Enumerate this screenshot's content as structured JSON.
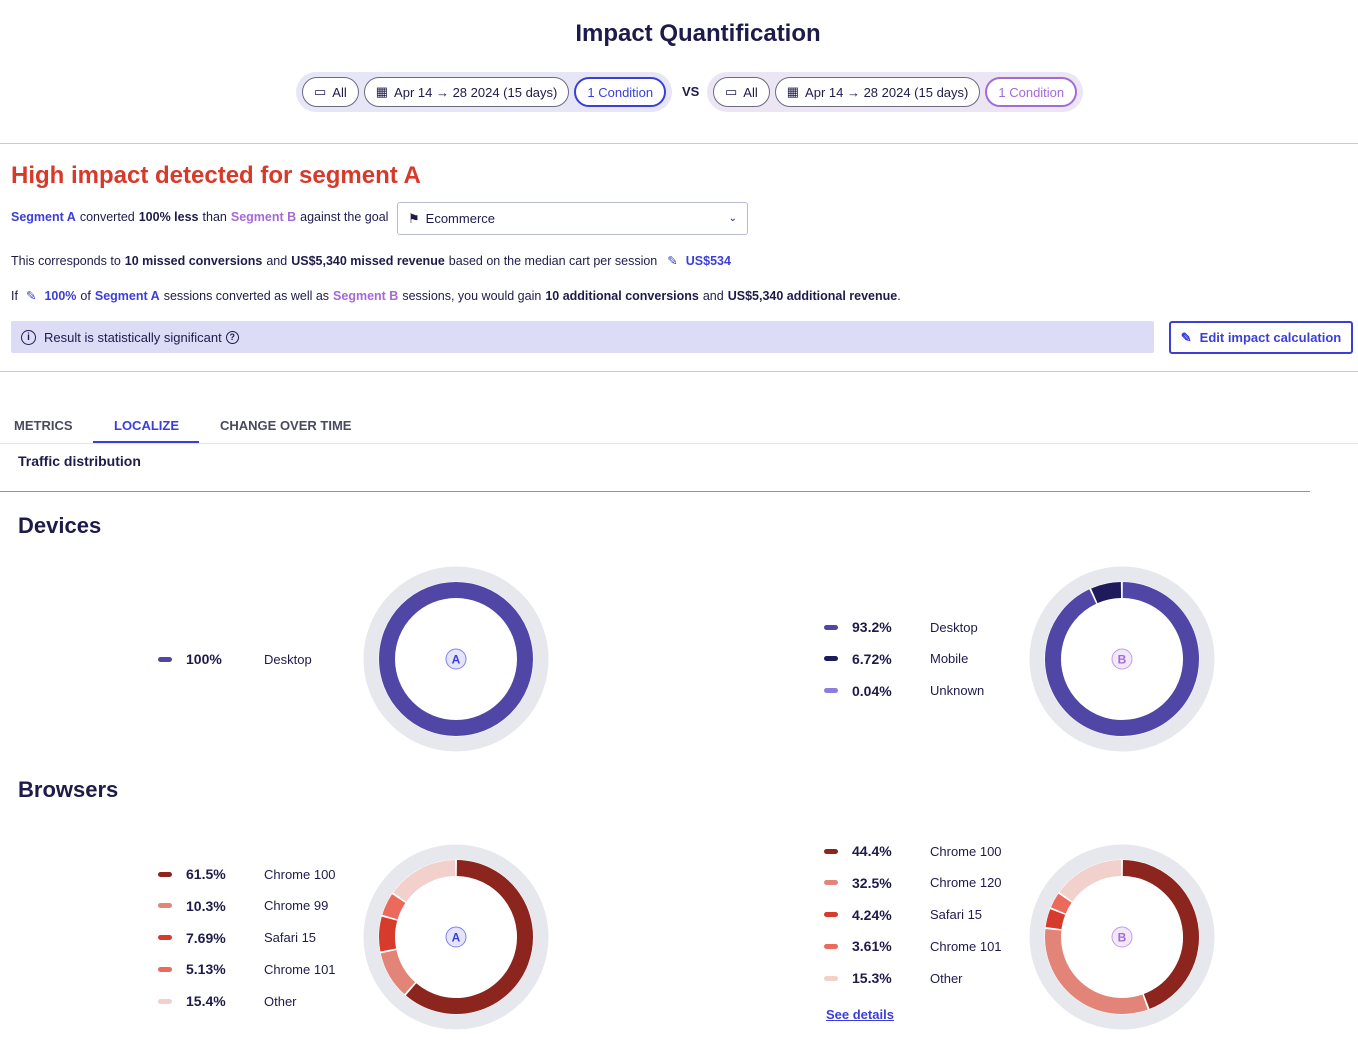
{
  "title": "Impact Quantification",
  "comparison": {
    "a": {
      "device": "All",
      "date": "Apr 14 → 28 2024 (15 days)",
      "condition": "1 Condition"
    },
    "vs": "VS",
    "b": {
      "device": "All",
      "date": "Apr 14 → 28 2024 (15 days)",
      "condition": "1 Condition"
    }
  },
  "impact": {
    "heading": "High impact detected for segment A",
    "line1": {
      "seg_a": "Segment A",
      "t1": "converted",
      "pct": "100% less",
      "t2": "than",
      "seg_b": "Segment B",
      "t3": "against the goal"
    },
    "goal_select": "Ecommerce",
    "line2": {
      "t1": "This corresponds to",
      "conv": "10 missed conversions",
      "t2": "and",
      "rev": "US$5,340 missed revenue",
      "t3": "based on the median cart per session",
      "cart": "US$534"
    },
    "line3": {
      "t1": "If",
      "pct": "100%",
      "t2": "of",
      "seg_a": "Segment A",
      "t3": "sessions converted as well as",
      "seg_b": "Segment B",
      "t4": "sessions, you would gain",
      "conv": "10 additional conversions",
      "t5": "and",
      "rev": "US$5,340 additional revenue",
      "t6": "."
    },
    "banner": "Result is statistically significant",
    "edit_button": "Edit impact calculation"
  },
  "tabs": [
    {
      "label": "METRICS"
    },
    {
      "label": "LOCALIZE",
      "active": true
    },
    {
      "label": "CHANGE OVER TIME"
    }
  ],
  "subheading": "Traffic distribution",
  "see_details": "See details",
  "colors": {
    "segment_a": "#3b3fd8",
    "segment_b": "#a46ad6",
    "alert": "#d73a2a"
  },
  "chart_data": [
    {
      "type": "pie",
      "title": "Devices",
      "segment": "A",
      "series": [
        {
          "label": "Desktop",
          "pct": "100%",
          "value": 100,
          "color": "#4f46a5"
        }
      ]
    },
    {
      "type": "pie",
      "title": "Devices",
      "segment": "B",
      "series": [
        {
          "label": "Desktop",
          "pct": "93.2%",
          "value": 93.2,
          "color": "#4f46a5"
        },
        {
          "label": "Mobile",
          "pct": "6.72%",
          "value": 6.72,
          "color": "#1f1a5c"
        },
        {
          "label": "Unknown",
          "pct": "0.04%",
          "value": 0.04,
          "color": "#8a7fe0"
        }
      ]
    },
    {
      "type": "pie",
      "title": "Browsers",
      "segment": "A",
      "series": [
        {
          "label": "Chrome 100",
          "pct": "61.5%",
          "value": 61.5,
          "color": "#8b251e"
        },
        {
          "label": "Chrome 99",
          "pct": "10.3%",
          "value": 10.3,
          "color": "#e38479"
        },
        {
          "label": "Safari 15",
          "pct": "7.69%",
          "value": 7.69,
          "color": "#d63b2b"
        },
        {
          "label": "Chrome 101",
          "pct": "5.13%",
          "value": 5.13,
          "color": "#ec6a5c"
        },
        {
          "label": "Other",
          "pct": "15.4%",
          "value": 15.4,
          "color": "#f2d0cc"
        }
      ]
    },
    {
      "type": "pie",
      "title": "Browsers",
      "segment": "B",
      "series": [
        {
          "label": "Chrome 100",
          "pct": "44.4%",
          "value": 44.4,
          "color": "#8b251e"
        },
        {
          "label": "Chrome 120",
          "pct": "32.5%",
          "value": 32.5,
          "color": "#e38479"
        },
        {
          "label": "Safari 15",
          "pct": "4.24%",
          "value": 4.24,
          "color": "#d63b2b"
        },
        {
          "label": "Chrome 101",
          "pct": "3.61%",
          "value": 3.61,
          "color": "#ec6a5c"
        },
        {
          "label": "Other",
          "pct": "15.3%",
          "value": 15.3,
          "color": "#f2d0cc"
        }
      ]
    }
  ]
}
